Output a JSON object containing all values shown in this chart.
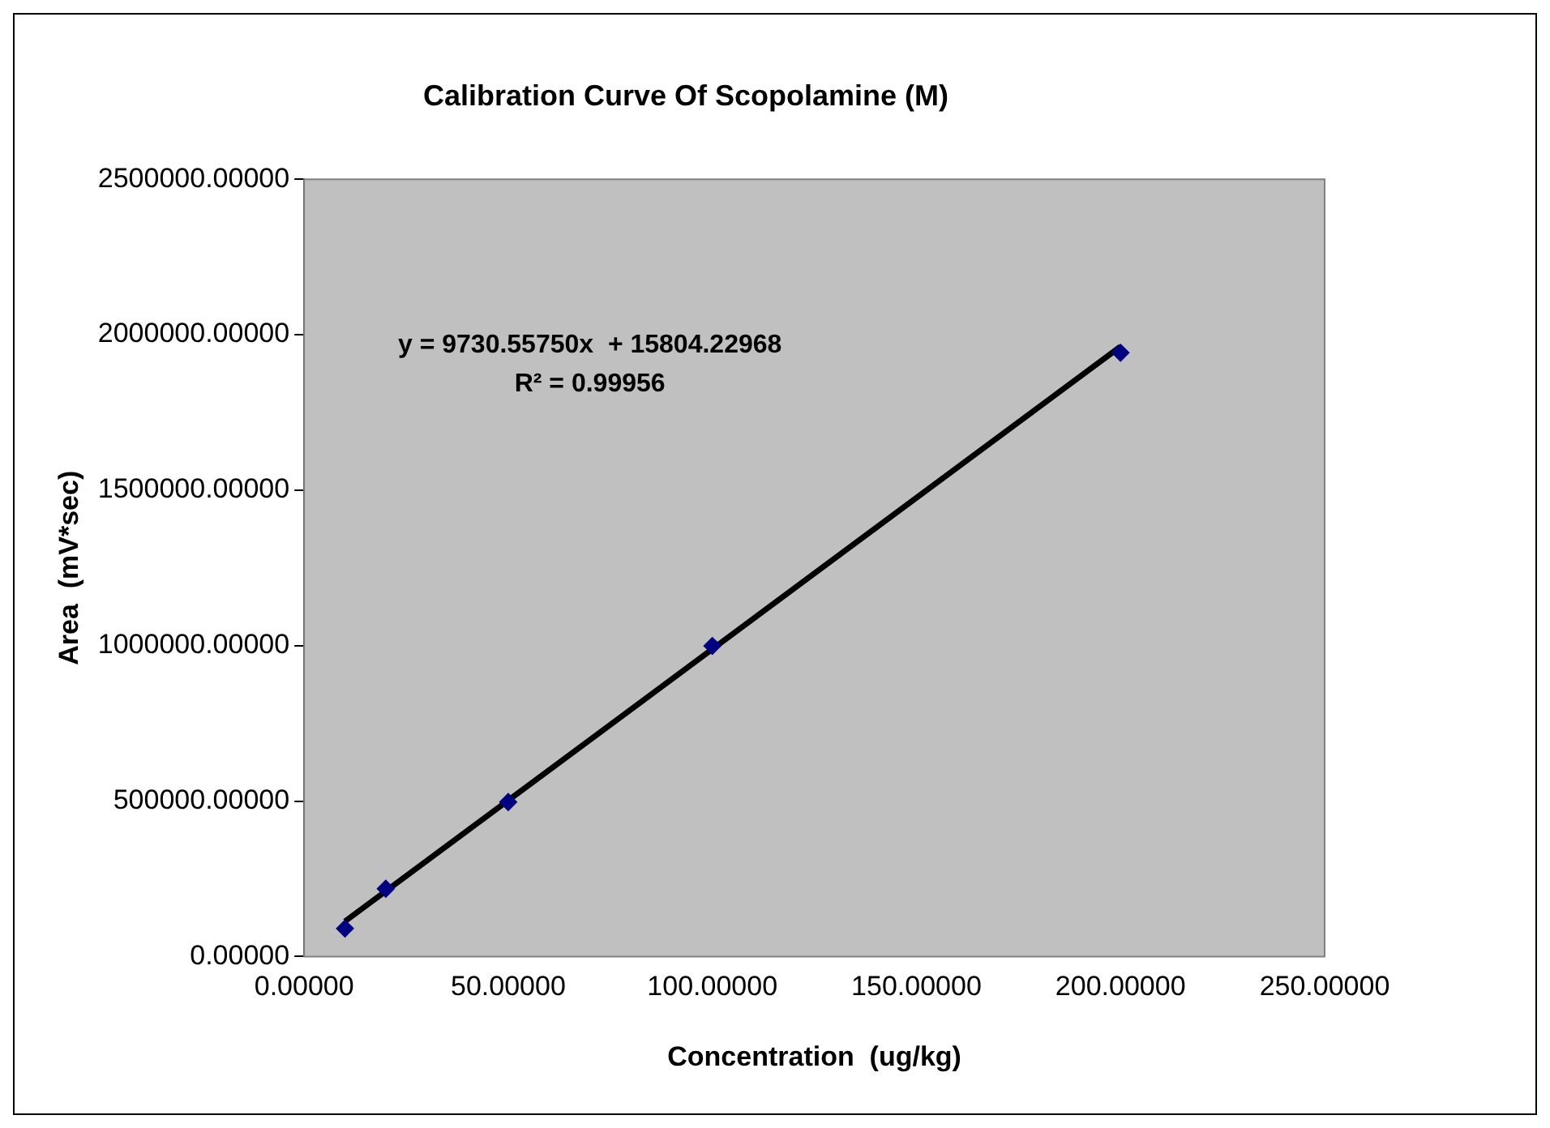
{
  "chart_data": {
    "type": "scatter",
    "title": "Calibration Curve Of Scopolamine (M)",
    "xlabel": "Concentration  (ug/kg)",
    "ylabel": "Area  (mV*sec)",
    "xlim": [
      0,
      250
    ],
    "ylim": [
      0,
      2500000
    ],
    "xticks": [
      {
        "value": 0,
        "label": "0.00000"
      },
      {
        "value": 50,
        "label": "50.00000"
      },
      {
        "value": 100,
        "label": "100.00000"
      },
      {
        "value": 150,
        "label": "150.00000"
      },
      {
        "value": 200,
        "label": "200.00000"
      },
      {
        "value": 250,
        "label": "250.00000"
      }
    ],
    "yticks": [
      {
        "value": 0,
        "label": "0.00000"
      },
      {
        "value": 500000,
        "label": "500000.00000"
      },
      {
        "value": 1000000,
        "label": "1000000.00000"
      },
      {
        "value": 1500000,
        "label": "1500000.00000"
      },
      {
        "value": 2000000,
        "label": "2000000.00000"
      },
      {
        "value": 2500000,
        "label": "2500000.00000"
      }
    ],
    "grid": false,
    "legend": false,
    "marker": "diamond",
    "series": [
      {
        "type": "scatter",
        "color": "#000080",
        "x": [
          10,
          20,
          50,
          100,
          200
        ],
        "values": [
          90000,
          218000,
          497000,
          999000,
          1942000
        ]
      },
      {
        "type": "line",
        "color": "#000000",
        "marker": "none",
        "line_style": "solid",
        "x": [
          10,
          200
        ],
        "values": [
          113000,
          1962000
        ]
      }
    ],
    "annotations": [
      "y = 9730.55750x  + 15804.22968",
      "R² = 0.99956"
    ]
  }
}
